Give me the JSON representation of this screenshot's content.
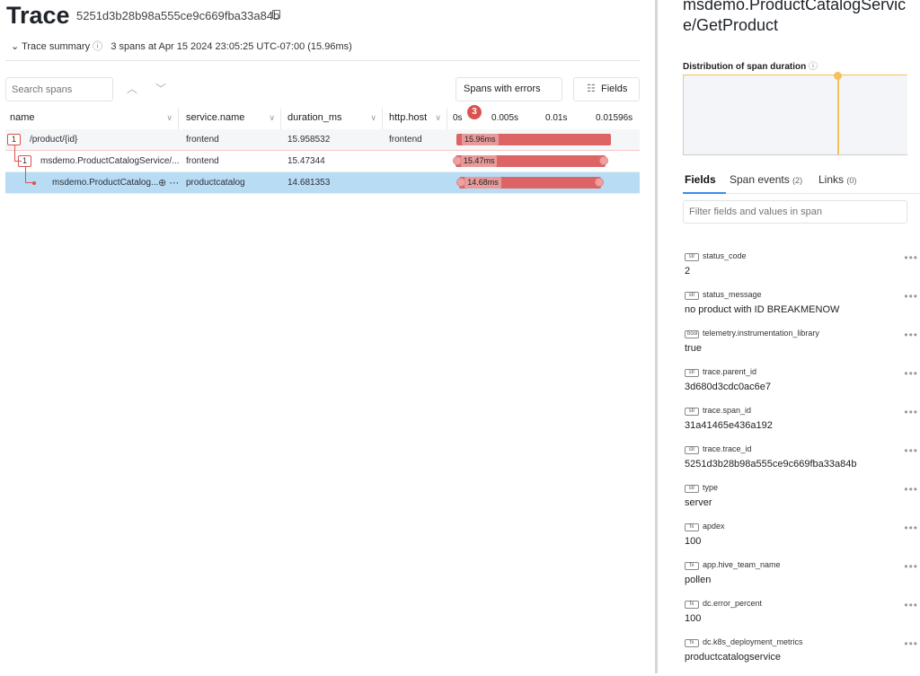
{
  "header": {
    "title": "Trace",
    "trace_id": "5251d3b28b98a555ce9c669fba33a84b",
    "summary_label": "Trace summary",
    "summary_text": "3 spans at Apr 15 2024 23:05:25 UTC-07:00 (15.96ms)"
  },
  "toolbar": {
    "search_placeholder": "Search spans",
    "errors_label": "Spans with errors",
    "errors_count": "3",
    "fields_label": "Fields"
  },
  "columns": [
    "name",
    "service.name",
    "duration_ms",
    "http.host"
  ],
  "timeline": {
    "ticks": [
      "0s",
      "0.005s",
      "0.01s",
      "0.01596s"
    ],
    "max_ms": 15.96
  },
  "spans": [
    {
      "name": "/product/{id}",
      "children": "1",
      "service": "frontend",
      "duration": "15.958532",
      "host": "frontend",
      "bar_label": "15.96ms",
      "start_ms": 0,
      "dur_ms": 15.96
    },
    {
      "name": "msdemo.ProductCatalogService/...",
      "children": "1",
      "service": "frontend",
      "duration": "15.47344",
      "host": "",
      "bar_label": "15.47ms",
      "start_ms": -0.1,
      "dur_ms": 15.47
    },
    {
      "name": "msdemo.ProductCatalog...",
      "children": "",
      "service": "productcatalog",
      "duration": "14.681353",
      "host": "",
      "bar_label": "14.68ms",
      "start_ms": 0.3,
      "dur_ms": 14.68
    }
  ],
  "colors": {
    "error": "#dc6464",
    "selected": "#b9dcf5",
    "accent": "#3a8ee6",
    "marker": "#f5c15c"
  },
  "panel": {
    "title": "msdemo.ProductCatalogService/GetProduct",
    "dist_label": "Distribution of span duration",
    "tabs": [
      {
        "label": "Fields",
        "count": ""
      },
      {
        "label": "Span events",
        "count": "(2)"
      },
      {
        "label": "Links",
        "count": "(0)"
      }
    ],
    "filter_placeholder": "Filter fields and values in span",
    "fields": [
      {
        "type": "str",
        "key": "status_code",
        "value": "2"
      },
      {
        "type": "str",
        "key": "status_message",
        "value": "no product with ID BREAKMENOW"
      },
      {
        "type": "bool",
        "key": "telemetry.instrumentation_library",
        "value": "true"
      },
      {
        "type": "str",
        "key": "trace.parent_id",
        "value": "3d680d3cdc0ac6e7"
      },
      {
        "type": "str",
        "key": "trace.span_id",
        "value": "31a41465e436a192"
      },
      {
        "type": "str",
        "key": "trace.trace_id",
        "value": "5251d3b28b98a555ce9c669fba33a84b"
      },
      {
        "type": "str",
        "key": "type",
        "value": "server"
      },
      {
        "type": "fx",
        "key": "apdex",
        "value": "100"
      },
      {
        "type": "fx",
        "key": "app.hive_team_name",
        "value": "pollen"
      },
      {
        "type": "fx",
        "key": "dc.error_percent",
        "value": "100"
      },
      {
        "type": "fx",
        "key": "dc.k8s_deployment_metrics",
        "value": "productcatalogservice"
      }
    ]
  }
}
